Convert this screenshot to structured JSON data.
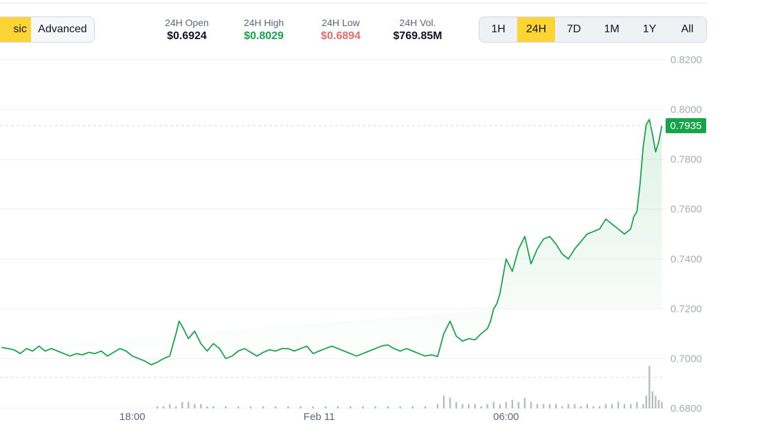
{
  "view_toggle": {
    "basic_label": "sic",
    "advanced_label": "Advanced",
    "active": "basic"
  },
  "stats": {
    "open": {
      "label": "24H Open",
      "value": "$0.6924"
    },
    "high": {
      "label": "24H High",
      "value": "$0.8029",
      "color": "#16a34a"
    },
    "low": {
      "label": "24H Low",
      "value": "$0.6894",
      "color": "#ea6b6b"
    },
    "volume": {
      "label": "24H Vol.",
      "value": "$769.85M"
    }
  },
  "range_tabs": [
    "1H",
    "24H",
    "7D",
    "1M",
    "1Y",
    "All"
  ],
  "range_active": "24H",
  "colors": {
    "line": "#16a34a",
    "accent": "#fcd535",
    "volume": "#b6bac1",
    "grid": "#eef0f3"
  },
  "chart_data": {
    "type": "line",
    "ylim": [
      0.68,
      0.82
    ],
    "ytick_labels": [
      "0.8200",
      "0.8000",
      "0.7800",
      "0.7600",
      "0.7400",
      "0.7200",
      "0.7000",
      "0.6800"
    ],
    "xtick_labels": [
      "18:00",
      "Feb 11",
      "06:00"
    ],
    "xticks_hours": [
      5,
      11,
      17
    ],
    "xlim_hours": [
      0.75,
      22.1
    ],
    "current_price_label": "0.7935",
    "reference_price": 0.6924,
    "series": [
      {
        "x": [
          0.8,
          1.0,
          1.2,
          1.4,
          1.6,
          1.8,
          2.0,
          2.2,
          2.4,
          2.6,
          2.8,
          3.0,
          3.2,
          3.4,
          3.6,
          3.8,
          4.0,
          4.2,
          4.4,
          4.6,
          4.8,
          5.0,
          5.2,
          5.4,
          5.6,
          5.8,
          6.0,
          6.2,
          6.4,
          6.5,
          6.6,
          6.8,
          7.0,
          7.2,
          7.4,
          7.6,
          7.8,
          8.0,
          8.2,
          8.4,
          8.6,
          8.8,
          9.0,
          9.2,
          9.4,
          9.6,
          9.8,
          10.0,
          10.2,
          10.4,
          10.6,
          10.8,
          11.0,
          11.2,
          11.4,
          11.6,
          11.8,
          12.0,
          12.2,
          12.4,
          12.6,
          12.8,
          13.0,
          13.2,
          13.4,
          13.6,
          13.8,
          14.0,
          14.2,
          14.4,
          14.6,
          14.8,
          15.0,
          15.2,
          15.4,
          15.6,
          15.8,
          16.0,
          16.2,
          16.4,
          16.5,
          16.6,
          16.7,
          16.8,
          17.0,
          17.2,
          17.4,
          17.6,
          17.8,
          18.0,
          18.2,
          18.4,
          18.6,
          18.8,
          19.0,
          19.2,
          19.4,
          19.6,
          19.8,
          20.0,
          20.2,
          20.4,
          20.6,
          20.8,
          21.0,
          21.1,
          21.2,
          21.3,
          21.4,
          21.5,
          21.6,
          21.7,
          21.8,
          21.9,
          22.0
        ],
        "values": [
          0.7045,
          0.704,
          0.7035,
          0.702,
          0.704,
          0.703,
          0.705,
          0.703,
          0.704,
          0.703,
          0.702,
          0.701,
          0.702,
          0.7015,
          0.7025,
          0.702,
          0.703,
          0.701,
          0.7025,
          0.704,
          0.703,
          0.701,
          0.7,
          0.699,
          0.6975,
          0.6985,
          0.7,
          0.701,
          0.71,
          0.715,
          0.713,
          0.708,
          0.711,
          0.706,
          0.703,
          0.706,
          0.704,
          0.7,
          0.701,
          0.703,
          0.704,
          0.7025,
          0.701,
          0.7025,
          0.7035,
          0.703,
          0.704,
          0.704,
          0.703,
          0.704,
          0.705,
          0.702,
          0.703,
          0.704,
          0.705,
          0.704,
          0.703,
          0.702,
          0.701,
          0.702,
          0.703,
          0.704,
          0.705,
          0.7055,
          0.704,
          0.703,
          0.704,
          0.703,
          0.702,
          0.701,
          0.7015,
          0.7008,
          0.71,
          0.715,
          0.709,
          0.707,
          0.708,
          0.7075,
          0.71,
          0.712,
          0.715,
          0.72,
          0.722,
          0.726,
          0.74,
          0.735,
          0.744,
          0.749,
          0.738,
          0.744,
          0.748,
          0.749,
          0.746,
          0.742,
          0.74,
          0.744,
          0.747,
          0.75,
          0.751,
          0.752,
          0.756,
          0.754,
          0.752,
          0.75,
          0.752,
          0.757,
          0.759,
          0.77,
          0.785,
          0.794,
          0.796,
          0.79,
          0.783,
          0.787,
          0.7935
        ]
      }
    ],
    "volume": {
      "x": [
        5.8,
        6.0,
        6.2,
        6.4,
        6.6,
        6.8,
        7.0,
        7.2,
        7.4,
        7.6,
        8.0,
        8.4,
        8.8,
        9.2,
        9.6,
        10.0,
        10.4,
        10.8,
        11.2,
        11.6,
        12.0,
        12.4,
        12.8,
        13.2,
        13.6,
        14.0,
        14.4,
        14.8,
        15.0,
        15.2,
        15.4,
        15.6,
        15.8,
        16.0,
        16.2,
        16.4,
        16.6,
        16.8,
        17.0,
        17.2,
        17.4,
        17.6,
        17.8,
        18.0,
        18.2,
        18.4,
        18.6,
        18.8,
        19.0,
        19.2,
        19.4,
        19.6,
        19.8,
        20.0,
        20.2,
        20.4,
        20.6,
        20.8,
        21.0,
        21.2,
        21.4,
        21.5,
        21.6,
        21.7,
        21.8,
        21.9,
        22.0
      ],
      "values": [
        1,
        1,
        2,
        1,
        3,
        3,
        2,
        2,
        1,
        1,
        1,
        1,
        1,
        1,
        1,
        1,
        1,
        1,
        1,
        1,
        1,
        1,
        1,
        1,
        1,
        1,
        1,
        2,
        6,
        5,
        3,
        2,
        2,
        2,
        1,
        2,
        3,
        2,
        3,
        4,
        3,
        5,
        3,
        2,
        2,
        2,
        2,
        1,
        2,
        2,
        1,
        2,
        1,
        1,
        2,
        2,
        3,
        2,
        2,
        3,
        2,
        6,
        20,
        8,
        6,
        4,
        3
      ]
    }
  }
}
